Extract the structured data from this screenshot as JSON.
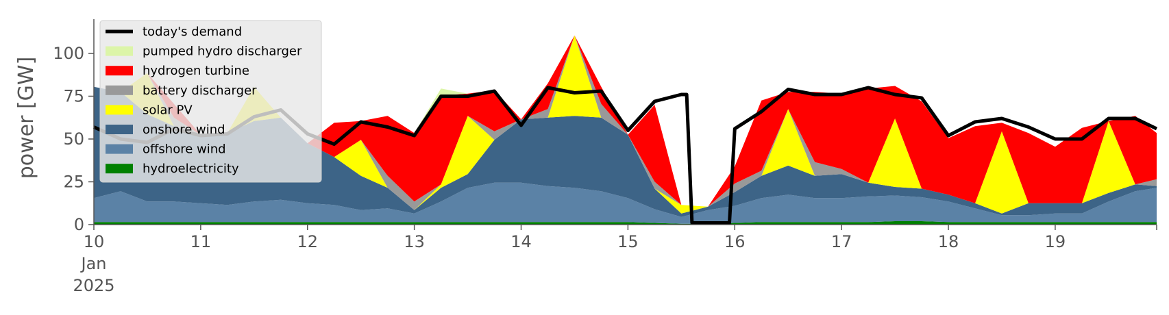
{
  "chart_data": {
    "type": "area",
    "stacked": true,
    "ylabel": "power [GW]",
    "xlabel": "",
    "ylim": [
      0,
      120
    ],
    "y_ticks": [
      0,
      25,
      50,
      75,
      100
    ],
    "y_tick_labels": [
      "0",
      "25",
      "50",
      "75",
      "100"
    ],
    "x_unit": "day of Jan 2025",
    "xlim": [
      10,
      19.95
    ],
    "x_ticks": [
      10,
      11,
      12,
      13,
      14,
      15,
      16,
      17,
      18,
      19
    ],
    "x_tick_labels": [
      "10",
      "11",
      "12",
      "13",
      "14",
      "15",
      "16",
      "17",
      "18",
      "19"
    ],
    "x_tick_sublabel": [
      "Jan",
      "2025"
    ],
    "grid": false,
    "legend_placement": "top-left",
    "x": [
      10.0,
      10.25,
      10.5,
      10.75,
      11.0,
      11.25,
      11.5,
      11.75,
      12.0,
      12.25,
      12.5,
      12.75,
      13.0,
      13.25,
      13.5,
      13.75,
      14.0,
      14.25,
      14.5,
      14.75,
      15.0,
      15.25,
      15.5,
      15.75,
      16.0,
      16.25,
      16.5,
      16.75,
      17.0,
      17.25,
      17.5,
      17.75,
      18.0,
      18.25,
      18.5,
      18.75,
      19.0,
      19.25,
      19.5,
      19.75,
      19.95
    ],
    "series": [
      {
        "name": "hydroelectricity",
        "color": "#008000",
        "values": [
          1.5,
          1.5,
          1.5,
          1.5,
          1.5,
          1.5,
          1.5,
          1.5,
          1.5,
          1.5,
          1.5,
          1.5,
          1.5,
          1.5,
          1.5,
          1.5,
          1.5,
          1.5,
          1.5,
          1.5,
          1.5,
          1.0,
          0.5,
          0.5,
          1.0,
          1.5,
          1.5,
          1.5,
          1.5,
          1.5,
          2.0,
          2.0,
          1.5,
          1.5,
          1.5,
          1.5,
          1.5,
          1.5,
          1.5,
          1.5,
          1.5
        ]
      },
      {
        "name": "offshore wind",
        "color": "#5b82a6",
        "values": [
          14,
          18,
          12,
          12,
          11,
          10,
          12,
          13,
          11,
          10,
          7,
          8,
          5,
          12,
          20,
          23,
          23,
          21,
          20,
          18,
          14,
          8,
          4,
          8,
          10,
          14,
          16,
          14,
          14,
          15,
          15,
          14,
          12,
          8,
          4,
          4,
          5,
          5,
          12,
          18,
          20
        ]
      },
      {
        "name": "onshore wind",
        "color": "#3d6487",
        "values": [
          65,
          58,
          51,
          44,
          40,
          42,
          47,
          48,
          35,
          28,
          20,
          12,
          2,
          8,
          8,
          25,
          37,
          40,
          42,
          43,
          37,
          12,
          2,
          2,
          8,
          13,
          17,
          13,
          14,
          8,
          5,
          5,
          4,
          3,
          1,
          7,
          6,
          6,
          5,
          4,
          1
        ]
      },
      {
        "name": "solar PV",
        "color": "#ffff00",
        "values": [
          0,
          0,
          24,
          0,
          0,
          0,
          20,
          0,
          0,
          0,
          21,
          0,
          0,
          2,
          34,
          0,
          0,
          0,
          47,
          0,
          0,
          0,
          5,
          0,
          0,
          0,
          33,
          0,
          0,
          0,
          40,
          0,
          0,
          0,
          48,
          0,
          0,
          0,
          42,
          0,
          0
        ]
      },
      {
        "name": "battery discharger",
        "color": "#999999",
        "values": [
          0,
          0,
          0,
          5,
          0,
          0,
          0,
          0,
          0,
          0,
          0,
          7,
          5,
          0,
          0,
          5,
          0,
          5,
          0,
          8,
          0,
          4,
          0,
          0,
          5,
          3,
          0,
          8,
          3,
          0,
          0,
          0,
          0,
          0,
          0,
          0,
          0,
          0,
          0,
          0,
          4
        ]
      },
      {
        "name": "hydrogen turbine",
        "color": "#ff0000",
        "values": [
          0,
          0,
          0,
          8,
          0,
          0,
          0,
          0,
          0,
          20,
          11,
          35,
          40,
          52,
          13,
          24,
          0,
          15,
          0,
          10,
          0,
          45,
          0,
          0,
          10,
          41,
          10,
          41,
          44,
          55,
          19,
          51,
          33,
          45,
          5,
          41,
          33,
          44,
          0,
          40,
          27
        ]
      },
      {
        "name": "pumped hydro discharger",
        "color": "#dcf5a8",
        "values": [
          0,
          0,
          0,
          0,
          0,
          0,
          0,
          0,
          0,
          0,
          0,
          0,
          0,
          4,
          0,
          0,
          0,
          0,
          0,
          0,
          0,
          0,
          0,
          0,
          0,
          0,
          0,
          0,
          0,
          0,
          0,
          0,
          0,
          0,
          0,
          0,
          0,
          0,
          0,
          0,
          0
        ]
      }
    ],
    "line_series": {
      "name": "today's demand",
      "color": "#000000",
      "x": [
        10.0,
        10.25,
        10.5,
        10.75,
        11.0,
        11.25,
        11.5,
        11.75,
        12.0,
        12.25,
        12.5,
        12.75,
        13.0,
        13.25,
        13.5,
        13.75,
        14.0,
        14.25,
        14.5,
        14.75,
        15.0,
        15.25,
        15.5,
        15.55,
        15.6,
        15.95,
        16.0,
        16.25,
        16.5,
        16.75,
        17.0,
        17.25,
        17.5,
        17.75,
        18.0,
        18.25,
        18.5,
        18.75,
        19.0,
        19.25,
        19.5,
        19.75,
        19.95
      ],
      "values": [
        57,
        50,
        48,
        56,
        52,
        53,
        63,
        67,
        53,
        47,
        60,
        57,
        52,
        75,
        75,
        78,
        58,
        80,
        77,
        78,
        55,
        72,
        76,
        76,
        1,
        1,
        56,
        66,
        79,
        76,
        76,
        80,
        76,
        74,
        52,
        60,
        62,
        57,
        50,
        50,
        62,
        62,
        56
      ]
    },
    "legend": [
      {
        "label": "today's demand",
        "color": "#000000",
        "kind": "line"
      },
      {
        "label": "pumped hydro discharger",
        "color": "#dcf5a8",
        "kind": "patch"
      },
      {
        "label": "hydrogen turbine",
        "color": "#ff0000",
        "kind": "patch"
      },
      {
        "label": "battery discharger",
        "color": "#999999",
        "kind": "patch"
      },
      {
        "label": "solar PV",
        "color": "#ffff00",
        "kind": "patch"
      },
      {
        "label": "onshore wind",
        "color": "#3d6487",
        "kind": "patch"
      },
      {
        "label": "offshore wind",
        "color": "#5b82a6",
        "kind": "patch"
      },
      {
        "label": "hydroelectricity",
        "color": "#008000",
        "kind": "patch"
      }
    ]
  }
}
